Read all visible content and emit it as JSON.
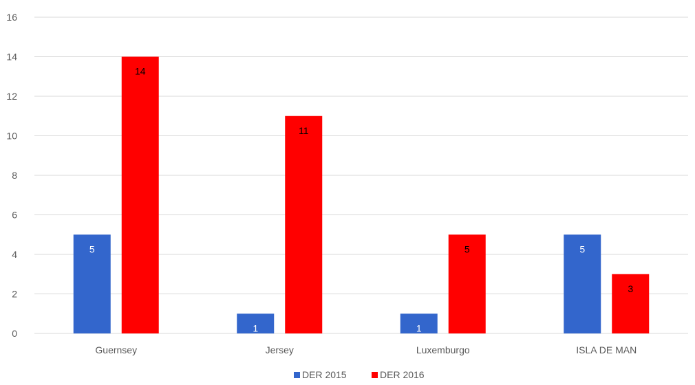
{
  "chart_data": {
    "type": "bar",
    "categories": [
      "Guernsey",
      "Jersey",
      "Luxemburgo",
      "ISLA DE MAN"
    ],
    "series": [
      {
        "name": "DER 2015",
        "values": [
          5,
          1,
          1,
          5
        ],
        "color": "#3366cc",
        "label_color": "#ffffff"
      },
      {
        "name": "DER 2016",
        "values": [
          14,
          11,
          5,
          3
        ],
        "color": "#ff0000",
        "label_color": "#000000"
      }
    ],
    "ylim": [
      0,
      16
    ],
    "yticks": [
      "0",
      "2",
      "4",
      "6",
      "8",
      "10",
      "12",
      "14",
      "16"
    ],
    "grid": true,
    "grid_color": "#d9d9d9",
    "legend_position": "bottom-center",
    "title": "",
    "xlabel": "",
    "ylabel": ""
  }
}
